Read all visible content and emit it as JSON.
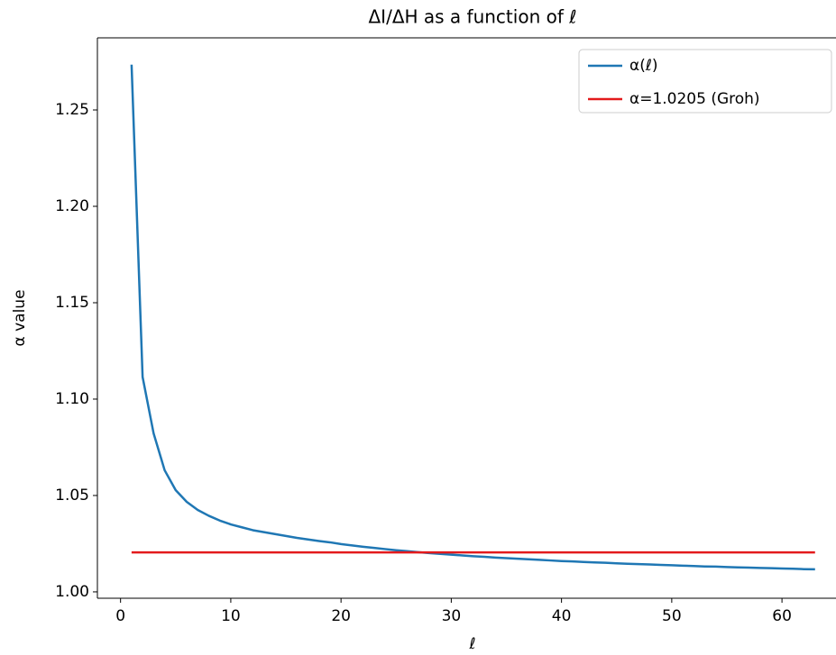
{
  "chart_data": {
    "type": "line",
    "title": "ΔI/ΔH as a function of ℓ",
    "xlabel": "ℓ",
    "ylabel": "α value",
    "xlim": [
      -2.1,
      64.9
    ],
    "ylim": [
      0.9967,
      1.2874
    ],
    "xticks": [
      0,
      10,
      20,
      30,
      40,
      50,
      60
    ],
    "yticks": [
      {
        "value": 1.0,
        "label": "1.00"
      },
      {
        "value": 1.05,
        "label": "1.05"
      },
      {
        "value": 1.1,
        "label": "1.10"
      },
      {
        "value": 1.15,
        "label": "1.15"
      },
      {
        "value": 1.2,
        "label": "1.20"
      },
      {
        "value": 1.25,
        "label": "1.25"
      }
    ],
    "grid": false,
    "legend": "upper right",
    "series": [
      {
        "name": "α(ℓ)",
        "color": "#1f77b4",
        "x": [
          1,
          2,
          3,
          4,
          5,
          6,
          7,
          8,
          9,
          10,
          11,
          12,
          13,
          14,
          15,
          16,
          17,
          18,
          19,
          20,
          21,
          22,
          23,
          24,
          25,
          26,
          27,
          28,
          29,
          30,
          31,
          32,
          33,
          34,
          35,
          36,
          37,
          38,
          39,
          40,
          41,
          42,
          43,
          44,
          45,
          46,
          47,
          48,
          49,
          50,
          51,
          52,
          53,
          54,
          55,
          56,
          57,
          58,
          59,
          60,
          61,
          62,
          63
        ],
        "values": [
          1.2735,
          1.1115,
          1.0822,
          1.0631,
          1.0528,
          1.0467,
          1.0425,
          1.0395,
          1.037,
          1.035,
          1.0335,
          1.032,
          1.031,
          1.03,
          1.029,
          1.028,
          1.0272,
          1.0264,
          1.0257,
          1.0248,
          1.0241,
          1.0234,
          1.0228,
          1.0222,
          1.0216,
          1.0211,
          1.0206,
          1.0201,
          1.0197,
          1.0193,
          1.0189,
          1.0185,
          1.0182,
          1.0178,
          1.0175,
          1.0172,
          1.0169,
          1.0166,
          1.0163,
          1.016,
          1.0158,
          1.0155,
          1.0153,
          1.0151,
          1.0148,
          1.0146,
          1.0144,
          1.0142,
          1.014,
          1.0138,
          1.0136,
          1.0134,
          1.0132,
          1.0131,
          1.0129,
          1.0127,
          1.0126,
          1.0124,
          1.0123,
          1.0121,
          1.012,
          1.0118,
          1.0117
        ]
      },
      {
        "name": "α=1.0205 (Groh)",
        "color": "#e31a1c",
        "x": [
          1,
          63
        ],
        "values": [
          1.0205,
          1.0205
        ]
      }
    ]
  }
}
